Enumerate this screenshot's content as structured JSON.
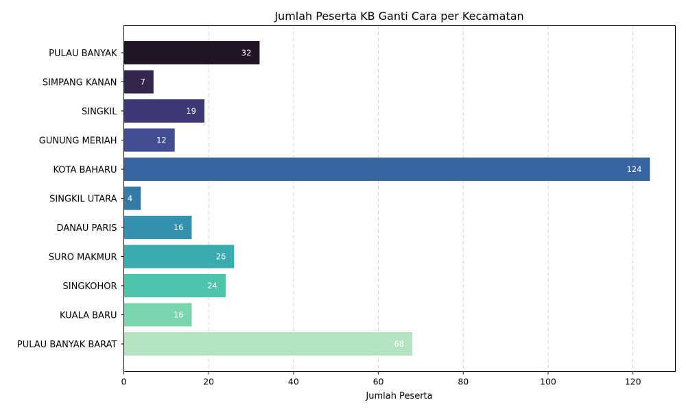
{
  "chart_data": {
    "type": "bar",
    "orientation": "horizontal",
    "title": "Jumlah Peserta KB Ganti Cara per Kecamatan",
    "xlabel": "Jumlah Peserta",
    "ylabel": "",
    "xlim": [
      0,
      130
    ],
    "xticks": [
      0,
      20,
      40,
      60,
      80,
      100,
      120
    ],
    "grid": "x-dashed",
    "categories": [
      "PULAU BANYAK",
      "SIMPANG KANAN",
      "SINGKIL",
      "GUNUNG MERIAH",
      "KOTA BAHARU",
      "SINGKIL UTARA",
      "DANAU PARIS",
      "SURO MAKMUR",
      "SINGKOHOR",
      "KUALA BARU",
      "PULAU BANYAK BARAT"
    ],
    "values": [
      32,
      7,
      19,
      12,
      124,
      4,
      16,
      26,
      24,
      16,
      68
    ],
    "colors": [
      "#211427",
      "#35244d",
      "#3f3876",
      "#424e91",
      "#3864a1",
      "#357ba7",
      "#3492ae",
      "#3aabaf",
      "#4ec4ad",
      "#7ad6af",
      "#b3e3c1"
    ]
  }
}
